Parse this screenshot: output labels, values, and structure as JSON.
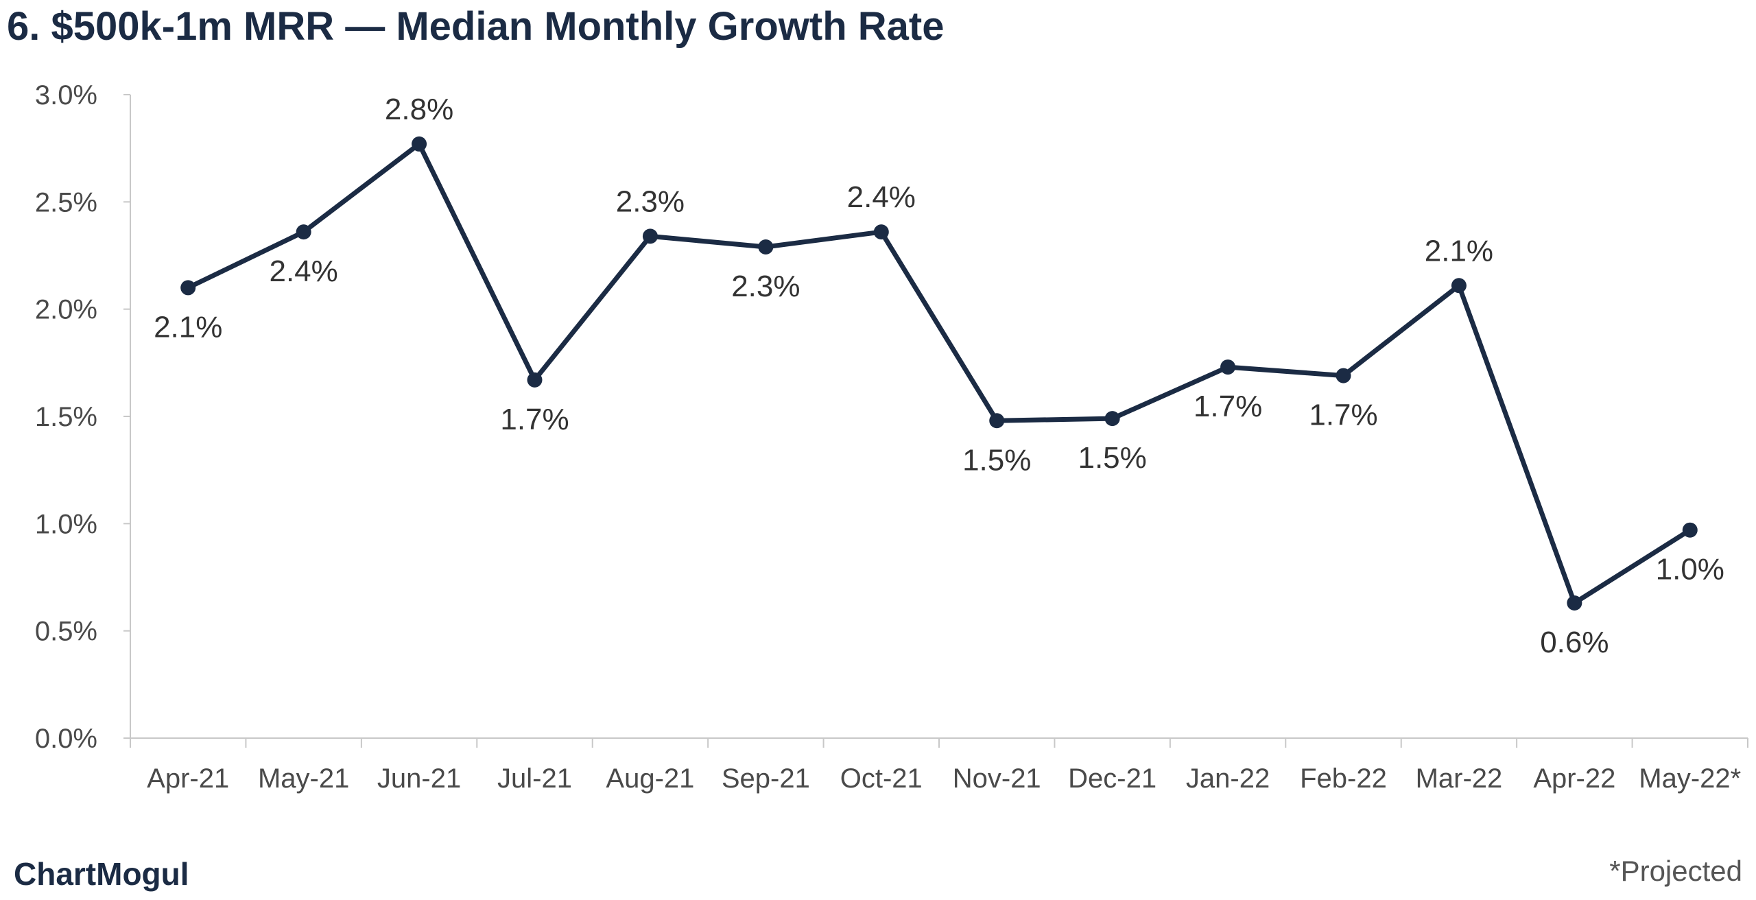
{
  "chart_data": {
    "type": "line",
    "title": "6. $500k-1m MRR — Median Monthly Growth Rate",
    "categories": [
      "Apr-21",
      "May-21",
      "Jun-21",
      "Jul-21",
      "Aug-21",
      "Sep-21",
      "Oct-21",
      "Nov-21",
      "Dec-21",
      "Jan-22",
      "Feb-22",
      "Mar-22",
      "Apr-22",
      "May-22*"
    ],
    "values": [
      2.1,
      2.36,
      2.77,
      1.67,
      2.34,
      2.29,
      2.36,
      1.48,
      1.49,
      1.73,
      1.69,
      2.11,
      0.63,
      0.97
    ],
    "data_labels": [
      "2.1%",
      "2.4%",
      "2.8%",
      "1.7%",
      "2.3%",
      "2.3%",
      "2.4%",
      "1.5%",
      "1.5%",
      "1.7%",
      "1.7%",
      "2.1%",
      "0.6%",
      "1.0%"
    ],
    "label_positions": [
      "below",
      "below",
      "above",
      "below",
      "above",
      "below",
      "above",
      "below",
      "below",
      "below",
      "below",
      "above",
      "below",
      "below"
    ],
    "ylim": [
      0,
      3.0
    ],
    "yticks": [
      0.0,
      0.5,
      1.0,
      1.5,
      2.0,
      2.5,
      3.0
    ],
    "ytick_labels": [
      "0.0%",
      "0.5%",
      "1.0%",
      "1.5%",
      "2.0%",
      "2.5%",
      "3.0%"
    ],
    "xlabel": "",
    "ylabel": "",
    "grid": false,
    "legend": false,
    "line_color": "#1b2b44",
    "axis_color": "#c8c8c8"
  },
  "branding": {
    "logo_text": "ChartMogul",
    "footnote": "*Projected"
  }
}
